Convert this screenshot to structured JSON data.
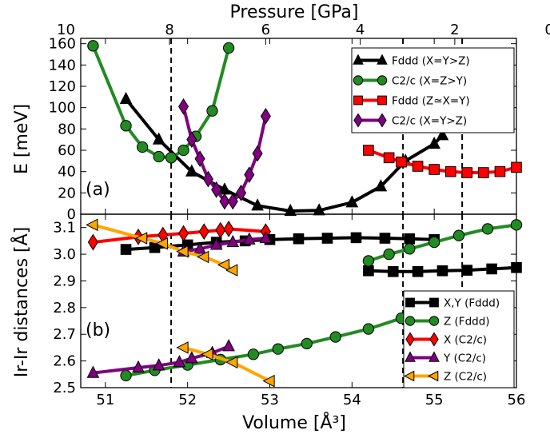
{
  "top_axis": {
    "label": "Pressure [GPa]",
    "ticks": [
      {
        "label": "10",
        "volume": 50.52
      },
      {
        "label": "8",
        "volume": 51.78
      },
      {
        "label": "6",
        "volume": 52.95
      },
      {
        "label": "4",
        "volume": 54.1
      },
      {
        "label": "2",
        "volume": 55.25
      },
      {
        "label": "0",
        "volume": 56.4
      }
    ]
  },
  "x_axis": {
    "label": "Volume [Å³]",
    "ticks": [
      "51",
      "52",
      "53",
      "54",
      "55",
      "56"
    ],
    "range": [
      50.7,
      56.0
    ]
  },
  "vlines": [
    51.8,
    54.62,
    55.34
  ],
  "colors": {
    "black": "#000000",
    "green": "#228B22",
    "red": "#FF0000",
    "purple": "#800080",
    "orange": "#FFA500"
  },
  "chart_data": [
    {
      "type": "line",
      "panel_label": "(a)",
      "ylabel": "E [meV]",
      "ylim": [
        0,
        165
      ],
      "yticks": [
        "0",
        "20",
        "40",
        "60",
        "80",
        "100",
        "120",
        "140",
        "160"
      ],
      "legend_position": "top-right",
      "series": [
        {
          "name": "Fddd (X=Y>Z)",
          "color": "#000000",
          "marker": "triangle-up",
          "points": [
            [
              51.25,
              108
            ],
            [
              51.65,
              70
            ],
            [
              52.05,
              40
            ],
            [
              52.45,
              23
            ],
            [
              52.85,
              8
            ],
            [
              53.25,
              3
            ],
            [
              53.6,
              3.5
            ],
            [
              54.0,
              11
            ],
            [
              54.35,
              26
            ],
            [
              54.65,
              50
            ],
            [
              55.0,
              66
            ],
            [
              55.1,
              74
            ]
          ]
        },
        {
          "name": "C2/c (X=Z>Y)",
          "color": "#228B22",
          "marker": "circle",
          "points": [
            [
              50.85,
              158
            ],
            [
              51.25,
              83
            ],
            [
              51.45,
              63
            ],
            [
              51.65,
              54
            ],
            [
              51.8,
              53
            ],
            [
              51.95,
              60
            ],
            [
              52.1,
              73
            ],
            [
              52.3,
              97
            ],
            [
              52.5,
              156
            ]
          ]
        },
        {
          "name": "Fddd (Z≃X=Y)",
          "color": "#FF0000",
          "marker": "square",
          "points": [
            [
              54.2,
              60
            ],
            [
              54.45,
              53
            ],
            [
              54.6,
              49
            ],
            [
              54.8,
              45
            ],
            [
              55.0,
              42
            ],
            [
              55.2,
              40
            ],
            [
              55.4,
              39
            ],
            [
              55.6,
              39
            ],
            [
              55.8,
              40
            ],
            [
              56.0,
              44
            ]
          ]
        },
        {
          "name": "C2/c (X=Y>Z)",
          "color": "#800080",
          "marker": "diamond",
          "points": [
            [
              51.95,
              101
            ],
            [
              52.05,
              70
            ],
            [
              52.15,
              52
            ],
            [
              52.25,
              33
            ],
            [
              52.35,
              23
            ],
            [
              52.45,
              12
            ],
            [
              52.55,
              12
            ],
            [
              52.65,
              20
            ],
            [
              52.75,
              37
            ],
            [
              52.85,
              57
            ],
            [
              52.95,
              92
            ]
          ]
        }
      ]
    },
    {
      "type": "line",
      "panel_label": "(b)",
      "ylabel": "Ir-Ir distances [Å]",
      "ylim": [
        2.5,
        3.15
      ],
      "yticks": [
        "2.5",
        "2.6",
        "2.7",
        "2.8",
        "2.9",
        "3.0",
        "3.1"
      ],
      "legend_position": "bottom-right",
      "series": [
        {
          "name": "X,Y (Fddd)",
          "color": "#000000",
          "marker": "square",
          "points": [
            [
              51.25,
              3.018
            ],
            [
              51.6,
              3.025
            ],
            [
              52.0,
              3.035
            ],
            [
              52.35,
              3.045
            ],
            [
              52.7,
              3.05
            ],
            [
              53.0,
              3.055
            ],
            [
              53.35,
              3.058
            ],
            [
              53.7,
              3.06
            ],
            [
              54.05,
              3.062
            ],
            [
              54.4,
              3.06
            ],
            [
              54.7,
              3.058
            ],
            [
              55.0,
              3.055
            ]
          ],
          "points2": [
            [
              54.2,
              2.938
            ],
            [
              54.5,
              2.935
            ],
            [
              54.8,
              2.935
            ],
            [
              55.1,
              2.938
            ],
            [
              55.4,
              2.94
            ],
            [
              55.7,
              2.945
            ],
            [
              56.0,
              2.95
            ]
          ]
        },
        {
          "name": "Z (Fddd)",
          "color": "#228B22",
          "marker": "circle",
          "points": [
            [
              51.25,
              2.545
            ],
            [
              51.6,
              2.565
            ],
            [
              52.0,
              2.585
            ],
            [
              52.4,
              2.605
            ],
            [
              52.8,
              2.625
            ],
            [
              53.1,
              2.645
            ],
            [
              53.45,
              2.665
            ],
            [
              53.8,
              2.69
            ],
            [
              54.2,
              2.72
            ],
            [
              54.6,
              2.76
            ],
            [
              54.9,
              2.785
            ]
          ],
          "points2": [
            [
              54.2,
              2.975
            ],
            [
              54.45,
              3.0
            ],
            [
              54.7,
              3.02
            ],
            [
              55.0,
              3.045
            ],
            [
              55.3,
              3.07
            ],
            [
              55.65,
              3.095
            ],
            [
              56.0,
              3.11
            ]
          ]
        },
        {
          "name": "X (C2/c)",
          "color": "#FF0000",
          "marker": "diamond",
          "points": [
            [
              50.85,
              3.045
            ],
            [
              51.4,
              3.065
            ],
            [
              51.7,
              3.072
            ],
            [
              51.95,
              3.078
            ],
            [
              52.2,
              3.085
            ],
            [
              52.4,
              3.09
            ],
            [
              52.5,
              3.095
            ],
            [
              52.95,
              3.085
            ]
          ]
        },
        {
          "name": "Y (C2/c)",
          "color": "#800080",
          "marker": "triangle-up",
          "points": [
            [
              50.85,
              2.555
            ],
            [
              51.4,
              2.575
            ],
            [
              51.65,
              2.583
            ],
            [
              51.9,
              2.595
            ],
            [
              52.05,
              2.61
            ],
            [
              52.3,
              2.63
            ],
            [
              52.5,
              2.655
            ]
          ],
          "points2": [
            [
              51.95,
              3.01
            ],
            [
              52.15,
              3.02
            ],
            [
              52.35,
              3.035
            ],
            [
              52.55,
              3.045
            ],
            [
              52.75,
              3.055
            ],
            [
              52.95,
              3.06
            ]
          ]
        },
        {
          "name": "Z (C2/c)",
          "color": "#FFA500",
          "marker": "triangle-left",
          "points": [
            [
              50.85,
              3.11
            ],
            [
              51.45,
              3.06
            ],
            [
              51.7,
              3.04
            ],
            [
              51.95,
              3.01
            ],
            [
              52.2,
              2.99
            ],
            [
              52.45,
              2.96
            ],
            [
              52.55,
              2.94
            ]
          ],
          "points2": [
            [
              51.95,
              2.65
            ],
            [
              52.25,
              2.625
            ],
            [
              52.55,
              2.595
            ],
            [
              53.0,
              2.525
            ]
          ]
        }
      ]
    }
  ]
}
